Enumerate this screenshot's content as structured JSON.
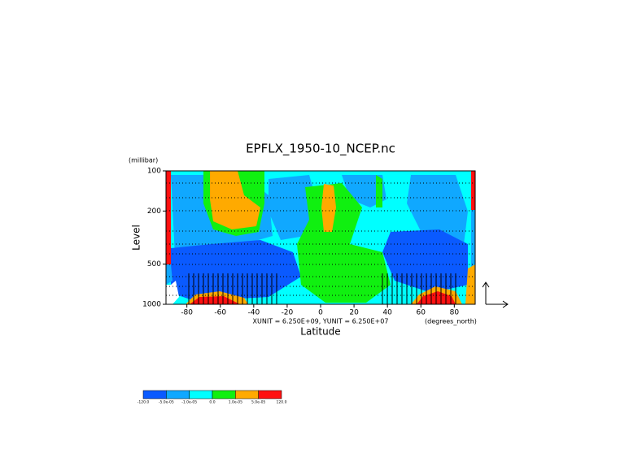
{
  "chart_data": {
    "type": "contour",
    "title": "EPFLX_1950-10_NCEP.nc",
    "x_label": "Latitude",
    "x_units": "(degrees_north)",
    "y_label": "Level",
    "y_units": "(millibar)",
    "vector_note": "XUNIT = 6.250E+09, YUNIT = 6.250E+07",
    "xlim": [
      -92.5,
      92.5
    ],
    "xticks": [
      -80,
      -60,
      -40,
      -20,
      0,
      20,
      40,
      60,
      80
    ],
    "ylim": [
      1000,
      100
    ],
    "yticks": [
      100,
      200,
      500,
      1000
    ],
    "log_y": true,
    "levels": [
      {
        "value": -120,
        "label": "-120.0"
      },
      {
        "value": -5e-05,
        "label": "-5.0e-05"
      },
      {
        "value": -1e-05,
        "label": "-1.0e-05"
      },
      {
        "value": 0,
        "label": "0.0"
      },
      {
        "value": 1e-05,
        "label": "1.0e-05"
      },
      {
        "value": 5e-05,
        "label": "5.0e-05"
      },
      {
        "value": 120,
        "label": "120.0"
      }
    ],
    "colors": [
      "#0a5aff",
      "#10a8ff",
      "#00ffff",
      "#10f010",
      "#ffaa00",
      "#ff1010"
    ]
  }
}
